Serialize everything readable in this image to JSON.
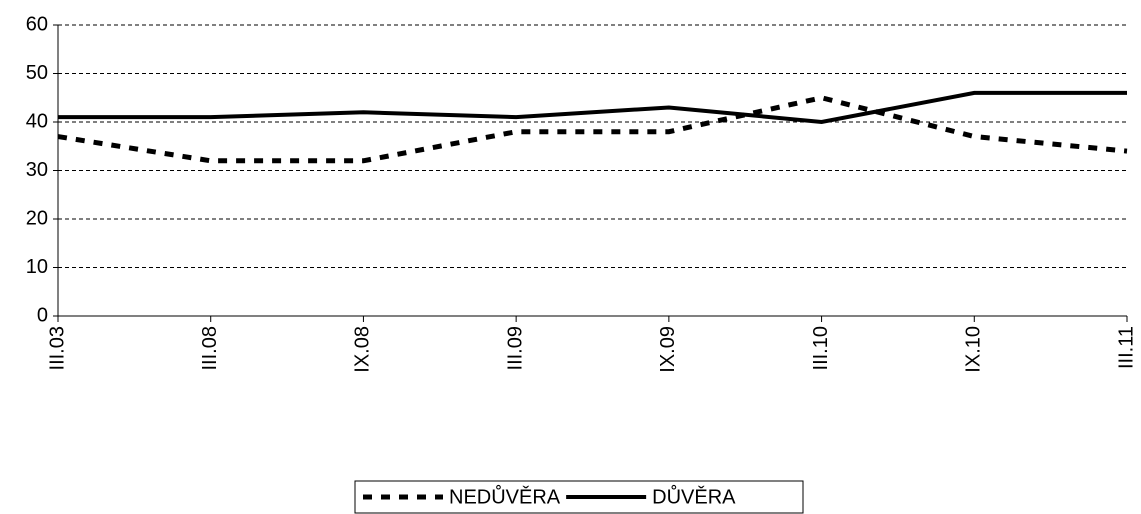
{
  "chart_data": {
    "type": "line",
    "categories": [
      "III.03",
      "III.08",
      "IX.08",
      "III.09",
      "IX.09",
      "III.10",
      "IX.10",
      "III.11"
    ],
    "series": [
      {
        "name": "NEDŮVĚRA",
        "color": "#000000",
        "style": "dashed",
        "values": [
          37,
          32,
          32,
          38,
          38,
          45,
          37,
          34
        ]
      },
      {
        "name": "DŮVĚRA",
        "color": "#000000",
        "style": "solid",
        "values": [
          41,
          41,
          42,
          41,
          43,
          40,
          46,
          46
        ]
      }
    ],
    "ylim": [
      0,
      60
    ],
    "yticks": [
      0,
      10,
      20,
      30,
      40,
      50,
      60
    ],
    "grid": true,
    "legend": "bottom"
  }
}
